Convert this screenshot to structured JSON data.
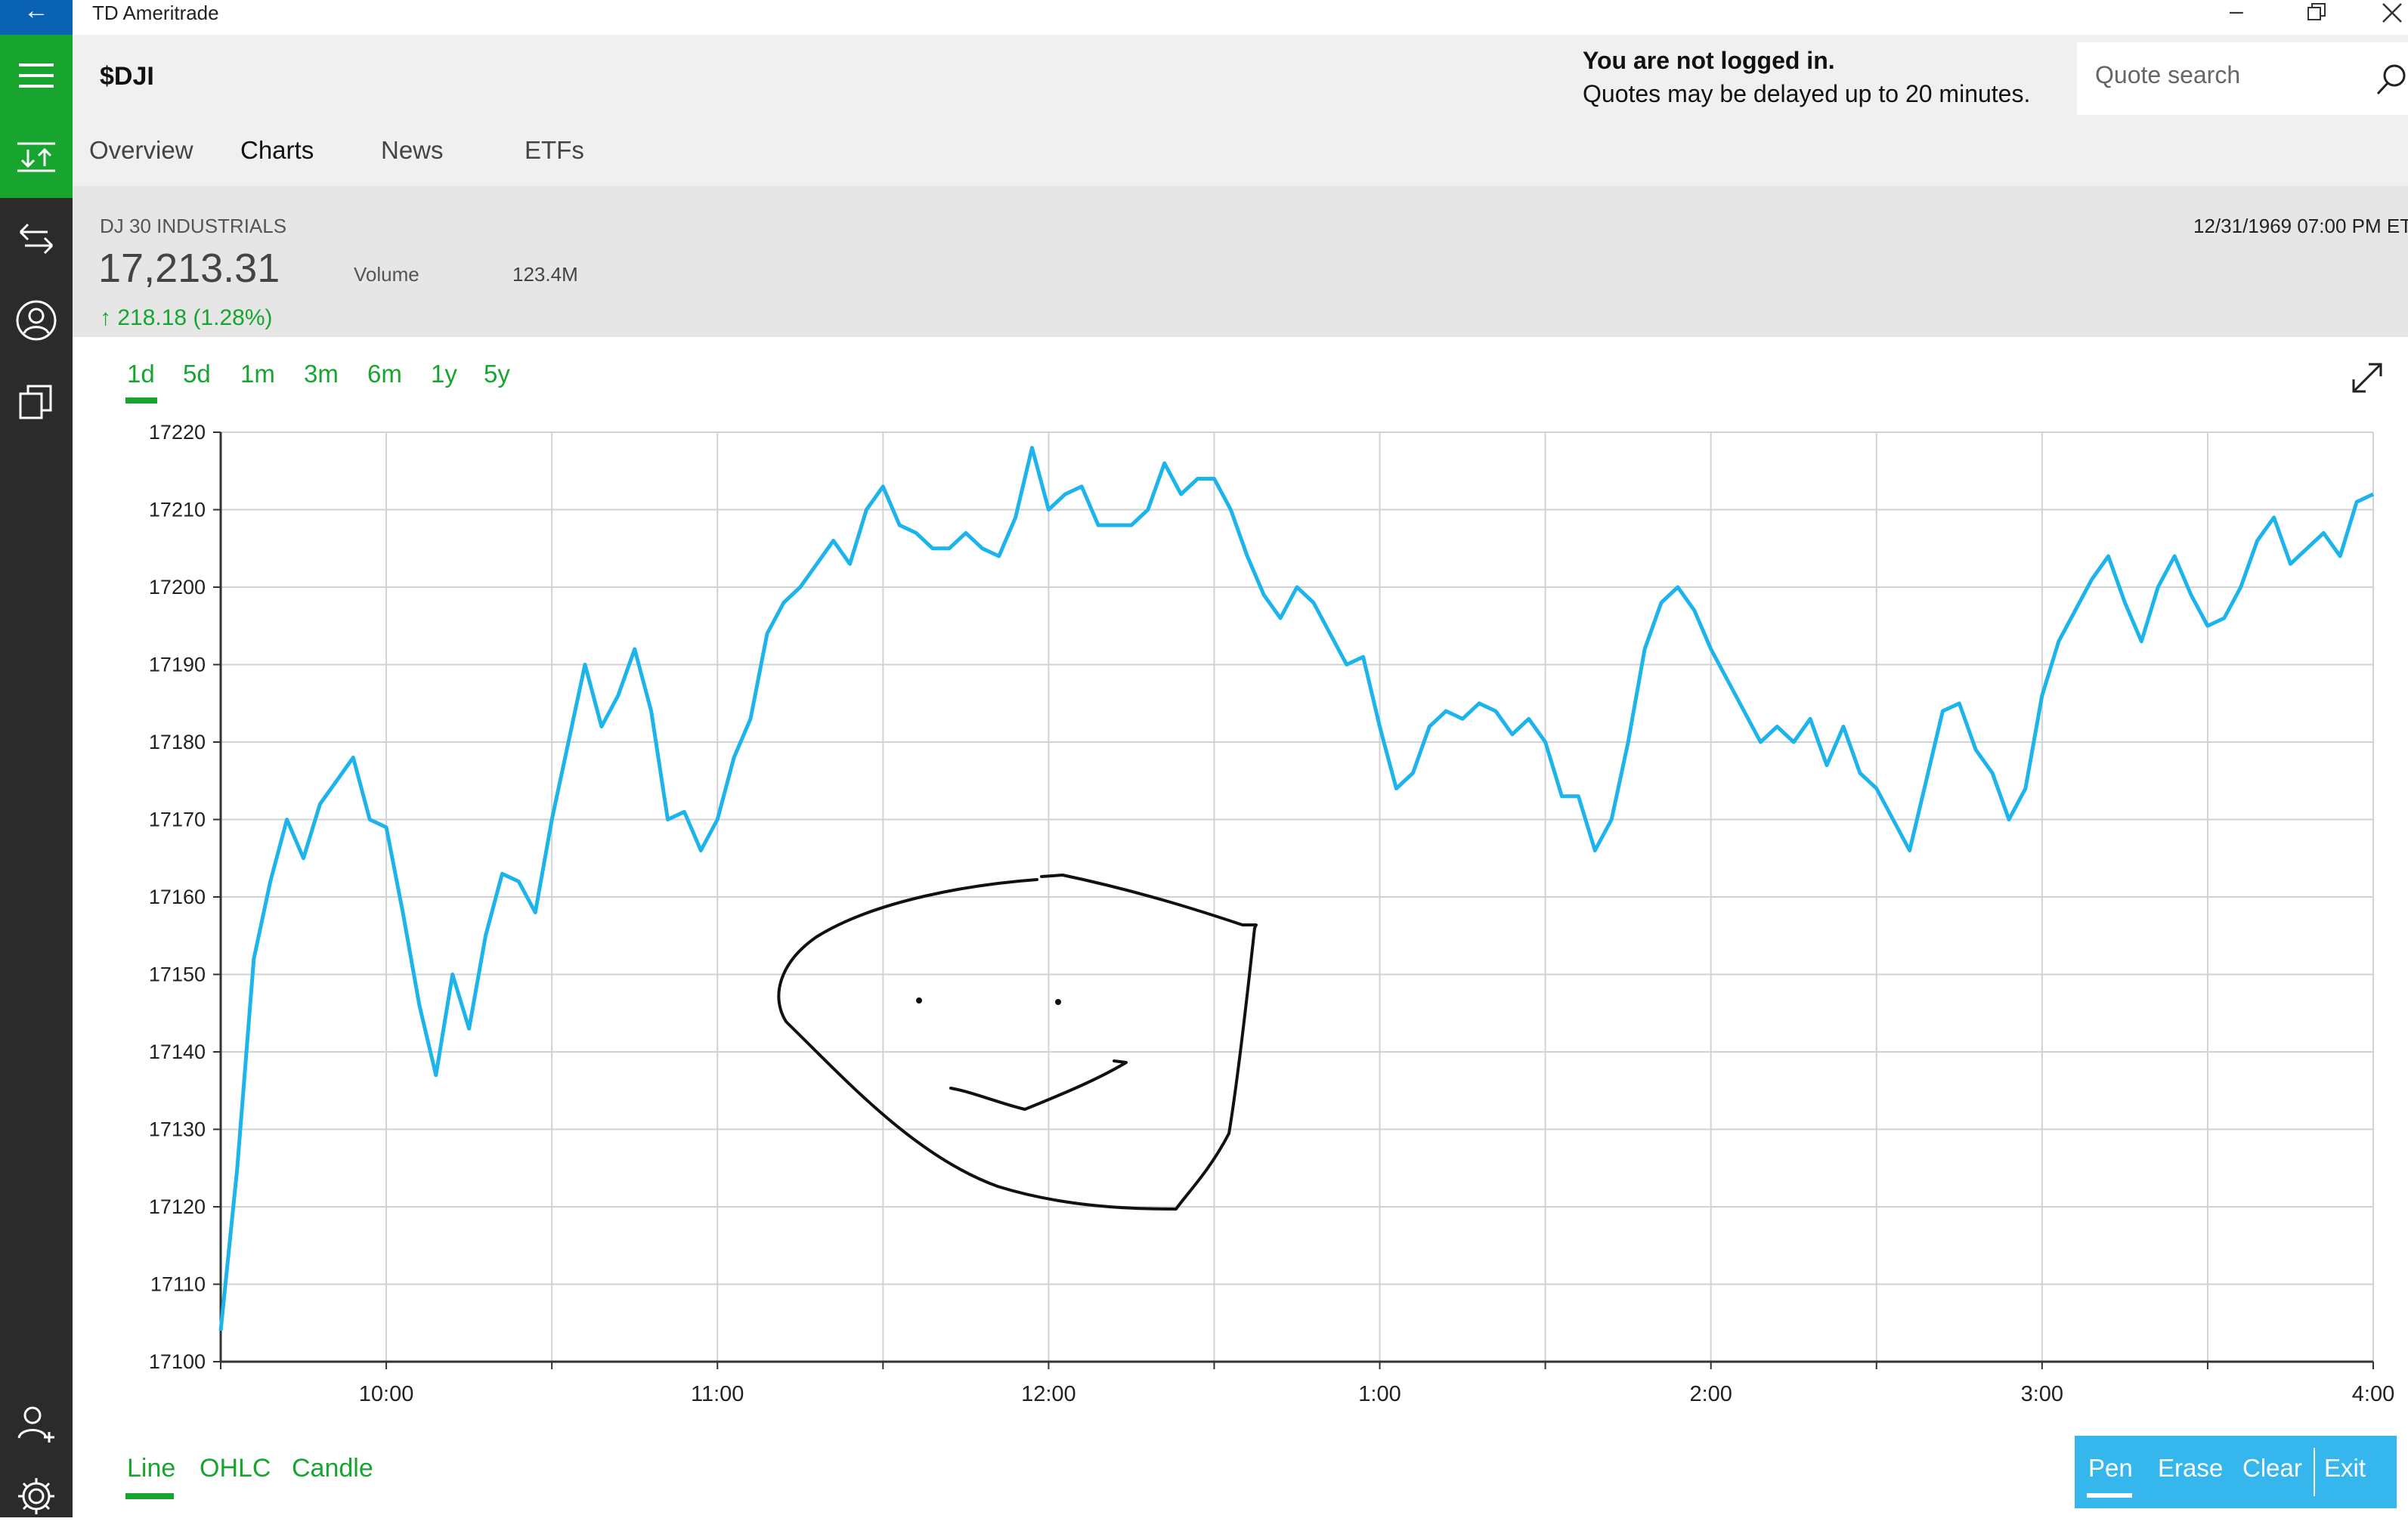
{
  "window": {
    "back_icon": "back-arrow-icon",
    "title": "TD Ameritrade",
    "minimize_icon": "minimize-icon",
    "restore_icon": "restore-icon",
    "close_icon": "close-icon"
  },
  "sidebar": {
    "items": [
      {
        "name": "hamburger-menu",
        "icon": "hamburger-icon"
      },
      {
        "name": "markets",
        "icon": "markets-icon"
      },
      {
        "name": "trade",
        "icon": "transfer-arrows-icon"
      },
      {
        "name": "account",
        "icon": "user-circle-icon"
      },
      {
        "name": "watchlists",
        "icon": "copy-pages-icon"
      },
      {
        "name": "add-user",
        "icon": "add-user-icon"
      },
      {
        "name": "settings",
        "icon": "gear-icon"
      }
    ],
    "accent_color": "#17a530"
  },
  "header": {
    "symbol": "$DJI",
    "login_title": "You are not logged in.",
    "login_subtitle": "Quotes may be delayed up to 20 minutes.",
    "search_placeholder": "Quote search"
  },
  "tabs": [
    {
      "label": "Overview"
    },
    {
      "label": "Charts"
    },
    {
      "label": "News"
    },
    {
      "label": "ETFs"
    }
  ],
  "quote": {
    "name": "DJ 30 INDUSTRIALS",
    "price": "17,213.31",
    "volume_label": "Volume",
    "volume_value": "123.4M",
    "change": "218.18 (1.28%)",
    "timestamp": "12/31/1969 07:00 PM ET",
    "change_color": "#17a530"
  },
  "ranges": {
    "items": [
      "1d",
      "5d",
      "1m",
      "3m",
      "6m",
      "1y",
      "5y"
    ],
    "selected": "1d"
  },
  "chart_types": {
    "items": [
      "Line",
      "OHLC",
      "Candle"
    ],
    "selected": "Line"
  },
  "pen_tools": {
    "items": [
      "Pen",
      "Erase",
      "Clear",
      "Exit"
    ],
    "selected": "Pen",
    "bar_color": "#35b6ec"
  },
  "chart_data": {
    "type": "line",
    "title": "",
    "xlabel": "",
    "ylabel": "",
    "x_ticks": [
      "10:00",
      "11:00",
      "12:00",
      "1:00",
      "2:00",
      "3:00",
      "4:00"
    ],
    "y_ticks": [
      17220,
      17210,
      17200,
      17190,
      17180,
      17170,
      17160,
      17150,
      17140,
      17130,
      17120,
      17110,
      17100
    ],
    "ylim": [
      17100,
      17220
    ],
    "xlim_hours": [
      9.5,
      16.0
    ],
    "grid": true,
    "line_color": "#1cb4ea",
    "series": [
      {
        "x": [
          9.5,
          9.55,
          9.6,
          9.65,
          9.7,
          9.75,
          9.8,
          9.85,
          9.9,
          9.95,
          10.0,
          10.05,
          10.1,
          10.15,
          10.2,
          10.25,
          10.3,
          10.35,
          10.4,
          10.45,
          10.5,
          10.55,
          10.6,
          10.65,
          10.7,
          10.75,
          10.8,
          10.85,
          10.9,
          10.95,
          11.0,
          11.05,
          11.1,
          11.15,
          11.2,
          11.25,
          11.3,
          11.35,
          11.4,
          11.45,
          11.5,
          11.55,
          11.6,
          11.65,
          11.7,
          11.75,
          11.8,
          11.85,
          11.9,
          11.95,
          12.0,
          12.05,
          12.1,
          12.15,
          12.2,
          12.25,
          12.3,
          12.35,
          12.4,
          12.45,
          12.5,
          12.55,
          12.6,
          12.65,
          12.7,
          12.75,
          12.8,
          12.85,
          12.9,
          12.95,
          13.0,
          13.05,
          13.1,
          13.15,
          13.2,
          13.25,
          13.3,
          13.35,
          13.4,
          13.45,
          13.5,
          13.55,
          13.6,
          13.65,
          13.7,
          13.75,
          13.8,
          13.85,
          13.9,
          13.95,
          14.0,
          14.05,
          14.1,
          14.15,
          14.2,
          14.25,
          14.3,
          14.35,
          14.4,
          14.45,
          14.5,
          14.55,
          14.6,
          14.65,
          14.7,
          14.75,
          14.8,
          14.85,
          14.9,
          14.95,
          15.0,
          15.05,
          15.1,
          15.15,
          15.2,
          15.25,
          15.3,
          15.35,
          15.4,
          15.45,
          15.5,
          15.55,
          15.6,
          15.65,
          15.7,
          15.75,
          15.8,
          15.85,
          15.9,
          15.95,
          16.0
        ],
        "values": [
          17104,
          17125,
          17152,
          17162,
          17170,
          17165,
          17172,
          17175,
          17178,
          17170,
          17169,
          17158,
          17146,
          17137,
          17150,
          17143,
          17155,
          17163,
          17162,
          17158,
          17170,
          17180,
          17190,
          17182,
          17186,
          17192,
          17184,
          17170,
          17171,
          17166,
          17170,
          17178,
          17183,
          17194,
          17198,
          17200,
          17203,
          17206,
          17203,
          17210,
          17213,
          17208,
          17207,
          17205,
          17205,
          17207,
          17205,
          17204,
          17209,
          17218,
          17210,
          17212,
          17213,
          17208,
          17208,
          17208,
          17210,
          17216,
          17212,
          17214,
          17214,
          17210,
          17204,
          17199,
          17196,
          17200,
          17198,
          17194,
          17190,
          17191,
          17182,
          17174,
          17176,
          17182,
          17184,
          17183,
          17185,
          17184,
          17181,
          17183,
          17180,
          17173,
          17173,
          17166,
          17170,
          17180,
          17192,
          17198,
          17200,
          17197,
          17192,
          17188,
          17184,
          17180,
          17182,
          17180,
          17183,
          17177,
          17182,
          17176,
          17174,
          17170,
          17166,
          17175,
          17184,
          17185,
          17179,
          17176,
          17170,
          17174,
          17186,
          17193,
          17197,
          17201,
          17204,
          17198,
          17193,
          17200,
          17204,
          17199,
          17195,
          17196,
          17200,
          17206,
          17209,
          17203,
          17205,
          17207,
          17204,
          17211,
          17212
        ]
      }
    ]
  },
  "annotation": {
    "label": "hand-drawn-smiley",
    "stroke_color": "#111111"
  }
}
